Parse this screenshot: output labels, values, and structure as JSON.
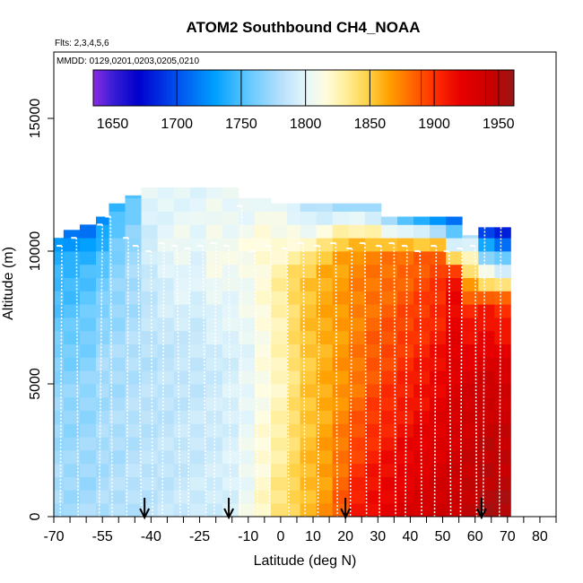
{
  "chart_data": {
    "type": "heatmap",
    "title": "ATOM2 Southbound CH4_NOAA",
    "flights_note": "Flts: 2,3,4,5,6",
    "dates_note": "MMDD: 0129,0201,0203,0205,0210",
    "xlabel": "Latitude (deg N)",
    "ylabel": "Altitude (m)",
    "xlim": [
      -70,
      85
    ],
    "ylim": [
      0,
      17500
    ],
    "x_ticks": [
      -70,
      -55,
      -40,
      -25,
      -10,
      0,
      10,
      20,
      30,
      40,
      50,
      60,
      70,
      80
    ],
    "x_minor_ticks": [
      -65,
      -60,
      -50,
      -45,
      -35,
      -30,
      -20,
      -15,
      -5,
      5,
      15,
      25,
      35,
      45,
      55,
      65,
      75,
      85
    ],
    "y_ticks": [
      0,
      5000,
      10000,
      15000
    ],
    "colorbar": {
      "min": 1635,
      "max": 1962,
      "tick_values": [
        1650,
        1700,
        1750,
        1800,
        1850,
        1900,
        1950
      ],
      "tick_labels": [
        "1650",
        "1700",
        "1750",
        "1800",
        "1850",
        "1900",
        "1950"
      ],
      "major_lines": [
        1700,
        1750,
        1800,
        1850,
        1900,
        1950
      ],
      "minor_lines": [
        1890,
        1940
      ]
    },
    "arrows_latitude": [
      -42,
      -16,
      20,
      62
    ],
    "color_stops": [
      {
        "v": 1635,
        "c": "#8a2be2"
      },
      {
        "v": 1650,
        "c": "#3a1fd6"
      },
      {
        "v": 1670,
        "c": "#0000cd"
      },
      {
        "v": 1700,
        "c": "#0050ee"
      },
      {
        "v": 1730,
        "c": "#00a0ff"
      },
      {
        "v": 1755,
        "c": "#60c8ff"
      },
      {
        "v": 1780,
        "c": "#b4e0fb"
      },
      {
        "v": 1800,
        "c": "#e4f6fb"
      },
      {
        "v": 1815,
        "c": "#fffce0"
      },
      {
        "v": 1830,
        "c": "#fff0a0"
      },
      {
        "v": 1850,
        "c": "#ffcf40"
      },
      {
        "v": 1865,
        "c": "#ffa000"
      },
      {
        "v": 1880,
        "c": "#ff7000"
      },
      {
        "v": 1900,
        "c": "#ff3000"
      },
      {
        "v": 1920,
        "c": "#e80000"
      },
      {
        "v": 1945,
        "c": "#c80000"
      },
      {
        "v": 1962,
        "c": "#9a1515"
      }
    ],
    "regions": [
      {
        "lat": [
          -70,
          -67
        ],
        "alt": [
          0,
          10500
        ],
        "profile": [
          [
            0,
            1778
          ],
          [
            5000,
            1770
          ],
          [
            9000,
            1745
          ],
          [
            10500,
            1730
          ]
        ]
      },
      {
        "lat": [
          -67,
          -62
        ],
        "alt": [
          0,
          10800
        ],
        "profile": [
          [
            0,
            1776
          ],
          [
            5000,
            1768
          ],
          [
            9500,
            1742
          ],
          [
            10800,
            1715
          ]
        ]
      },
      {
        "lat": [
          -62,
          -57
        ],
        "alt": [
          0,
          11000
        ],
        "profile": [
          [
            0,
            1776
          ],
          [
            5000,
            1770
          ],
          [
            9500,
            1748
          ],
          [
            11000,
            1705
          ]
        ]
      },
      {
        "lat": [
          -57,
          -53
        ],
        "alt": [
          0,
          11300
        ],
        "profile": [
          [
            0,
            1778
          ],
          [
            6000,
            1775
          ],
          [
            9500,
            1755
          ],
          [
            11300,
            1720
          ]
        ]
      },
      {
        "lat": [
          -53,
          -48
        ],
        "alt": [
          0,
          11800
        ],
        "profile": [
          [
            0,
            1780
          ],
          [
            6000,
            1776
          ],
          [
            10000,
            1765
          ],
          [
            11800,
            1740
          ]
        ]
      },
      {
        "lat": [
          -48,
          -43
        ],
        "alt": [
          0,
          12100
        ],
        "profile": [
          [
            0,
            1782
          ],
          [
            6000,
            1780
          ],
          [
            10500,
            1772
          ],
          [
            12100,
            1750
          ]
        ]
      },
      {
        "lat": [
          -43,
          -38
        ],
        "alt": [
          0,
          12400
        ],
        "profile": [
          [
            0,
            1784
          ],
          [
            6000,
            1782
          ],
          [
            10000,
            1790
          ],
          [
            12400,
            1800
          ]
        ]
      },
      {
        "lat": [
          -38,
          -33
        ],
        "alt": [
          0,
          12400
        ],
        "profile": [
          [
            0,
            1786
          ],
          [
            6000,
            1784
          ],
          [
            10000,
            1800
          ],
          [
            12400,
            1800
          ]
        ]
      },
      {
        "lat": [
          -33,
          -28
        ],
        "alt": [
          0,
          12400
        ],
        "profile": [
          [
            0,
            1788
          ],
          [
            6000,
            1785
          ],
          [
            10000,
            1806
          ],
          [
            12400,
            1800
          ]
        ]
      },
      {
        "lat": [
          -28,
          -23
        ],
        "alt": [
          0,
          12400
        ],
        "profile": [
          [
            0,
            1790
          ],
          [
            6000,
            1786
          ],
          [
            10000,
            1800
          ],
          [
            12400,
            1800
          ]
        ]
      },
      {
        "lat": [
          -23,
          -18
        ],
        "alt": [
          0,
          12400
        ],
        "profile": [
          [
            0,
            1792
          ],
          [
            6000,
            1790
          ],
          [
            10000,
            1812
          ],
          [
            12400,
            1800
          ]
        ]
      },
      {
        "lat": [
          -18,
          -13
        ],
        "alt": [
          0,
          12400
        ],
        "profile": [
          [
            0,
            1796
          ],
          [
            6000,
            1794
          ],
          [
            10000,
            1808
          ],
          [
            12400,
            1800
          ]
        ]
      },
      {
        "lat": [
          -13,
          -8
        ],
        "alt": [
          0,
          12000
        ],
        "profile": [
          [
            0,
            1806
          ],
          [
            6000,
            1800
          ],
          [
            10000,
            1812
          ],
          [
            12000,
            1800
          ]
        ]
      },
      {
        "lat": [
          -8,
          -3
        ],
        "alt": [
          0,
          12000
        ],
        "profile": [
          [
            0,
            1822
          ],
          [
            5000,
            1812
          ],
          [
            10000,
            1818
          ],
          [
            12000,
            1805
          ]
        ]
      },
      {
        "lat": [
          -3,
          2
        ],
        "alt": [
          0,
          11800
        ],
        "profile": [
          [
            0,
            1838
          ],
          [
            5000,
            1822
          ],
          [
            9000,
            1830
          ],
          [
            11800,
            1800
          ]
        ]
      },
      {
        "lat": [
          2,
          6
        ],
        "alt": [
          0,
          11800
        ],
        "profile": [
          [
            0,
            1848
          ],
          [
            5000,
            1838
          ],
          [
            9000,
            1845
          ],
          [
            11800,
            1790
          ]
        ]
      },
      {
        "lat": [
          6,
          11
        ],
        "alt": [
          0,
          11800
        ],
        "profile": [
          [
            0,
            1858
          ],
          [
            5000,
            1852
          ],
          [
            9000,
            1855
          ],
          [
            11800,
            1780
          ]
        ]
      },
      {
        "lat": [
          11,
          16
        ],
        "alt": [
          0,
          11800
        ],
        "profile": [
          [
            0,
            1868
          ],
          [
            5000,
            1860
          ],
          [
            9500,
            1862
          ],
          [
            11800,
            1775
          ]
        ]
      },
      {
        "lat": [
          16,
          21
        ],
        "alt": [
          0,
          11800
        ],
        "profile": [
          [
            0,
            1888
          ],
          [
            5000,
            1868
          ],
          [
            10000,
            1865
          ],
          [
            11800,
            1770
          ]
        ]
      },
      {
        "lat": [
          21,
          26
        ],
        "alt": [
          0,
          11800
        ],
        "profile": [
          [
            0,
            1912
          ],
          [
            5000,
            1878
          ],
          [
            10000,
            1872
          ],
          [
            11800,
            1765
          ]
        ]
      },
      {
        "lat": [
          26,
          31
        ],
        "alt": [
          0,
          11800
        ],
        "profile": [
          [
            0,
            1920
          ],
          [
            5000,
            1890
          ],
          [
            10000,
            1874
          ],
          [
            11800,
            1760
          ]
        ]
      },
      {
        "lat": [
          31,
          36
        ],
        "alt": [
          0,
          11300
        ],
        "profile": [
          [
            0,
            1925
          ],
          [
            5000,
            1898
          ],
          [
            10000,
            1876
          ],
          [
            11300,
            1760
          ]
        ]
      },
      {
        "lat": [
          36,
          41
        ],
        "alt": [
          0,
          11300
        ],
        "profile": [
          [
            0,
            1930
          ],
          [
            5000,
            1905
          ],
          [
            10000,
            1880
          ],
          [
            11300,
            1740
          ]
        ]
      },
      {
        "lat": [
          41,
          46
        ],
        "alt": [
          0,
          11300
        ],
        "profile": [
          [
            0,
            1935
          ],
          [
            5000,
            1912
          ],
          [
            10000,
            1885
          ],
          [
            11300,
            1720
          ]
        ]
      },
      {
        "lat": [
          46,
          51
        ],
        "alt": [
          0,
          11300
        ],
        "profile": [
          [
            0,
            1940
          ],
          [
            5000,
            1920
          ],
          [
            10000,
            1890
          ],
          [
            11300,
            1700
          ]
        ]
      },
      {
        "lat": [
          51,
          56
        ],
        "alt": [
          0,
          11300
        ],
        "profile": [
          [
            0,
            1945
          ],
          [
            5000,
            1930
          ],
          [
            9000,
            1915
          ],
          [
            11300,
            1700
          ]
        ]
      },
      {
        "lat": [
          56,
          61
        ],
        "alt": [
          0,
          10600
        ],
        "profile": [
          [
            0,
            1950
          ],
          [
            5000,
            1935
          ],
          [
            8000,
            1900
          ],
          [
            10600,
            1780
          ]
        ]
      },
      {
        "lat": [
          61,
          66
        ],
        "alt": [
          0,
          10900
        ],
        "profile": [
          [
            0,
            1955
          ],
          [
            5000,
            1940
          ],
          [
            8000,
            1905
          ],
          [
            10900,
            1680
          ]
        ]
      },
      {
        "lat": [
          66,
          71
        ],
        "alt": [
          0,
          10900
        ],
        "profile": [
          [
            0,
            1955
          ],
          [
            5000,
            1938
          ],
          [
            8000,
            1900
          ],
          [
            10900,
            1660
          ]
        ]
      }
    ],
    "profiles": [
      {
        "lat_top": -67.5,
        "lat_bottom": -68,
        "alt_top": 10200
      },
      {
        "lat_top": -63,
        "lat_bottom": -62.5,
        "alt_top": 10500
      },
      {
        "lat_top": -55,
        "lat_bottom": -56,
        "alt_top": 11000
      },
      {
        "lat_top": -52.5,
        "lat_bottom": -52,
        "alt_top": 11300
      },
      {
        "lat_top": -47,
        "lat_bottom": -47.5,
        "alt_top": 10500
      },
      {
        "lat_top": -44,
        "lat_bottom": -43,
        "alt_top": 10200
      },
      {
        "lat_top": -40,
        "lat_bottom": -39.5,
        "alt_top": 10000
      },
      {
        "lat_top": -36,
        "lat_bottom": -36.5,
        "alt_top": 10300
      },
      {
        "lat_top": -32,
        "lat_bottom": -31,
        "alt_top": 10200
      },
      {
        "lat_top": -28,
        "lat_bottom": -28.5,
        "alt_top": 10100
      },
      {
        "lat_top": -24,
        "lat_bottom": -23,
        "alt_top": 10200
      },
      {
        "lat_top": -20,
        "lat_bottom": -20.5,
        "alt_top": 10300
      },
      {
        "lat_top": -16,
        "lat_bottom": -15.5,
        "alt_top": 10200
      },
      {
        "lat_top": -12,
        "lat_bottom": -12.5,
        "alt_top": 11700
      },
      {
        "lat_top": -8,
        "lat_bottom": -7,
        "alt_top": 10000
      },
      {
        "lat_top": -3,
        "lat_bottom": -3.5,
        "alt_top": 10200
      },
      {
        "lat_top": 2,
        "lat_bottom": 2.5,
        "alt_top": 10100
      },
      {
        "lat_top": 7,
        "lat_bottom": 7.5,
        "alt_top": 10300
      },
      {
        "lat_top": 12,
        "lat_bottom": 11.5,
        "alt_top": 10200
      },
      {
        "lat_top": 17,
        "lat_bottom": 17.5,
        "alt_top": 10300
      },
      {
        "lat_top": 22,
        "lat_bottom": 21.5,
        "alt_top": 10100
      },
      {
        "lat_top": 26,
        "lat_bottom": 26.5,
        "alt_top": 10300
      },
      {
        "lat_top": 31,
        "lat_bottom": 30.5,
        "alt_top": 10200
      },
      {
        "lat_top": 35,
        "lat_bottom": 35.5,
        "alt_top": 10300
      },
      {
        "lat_top": 39,
        "lat_bottom": 38.5,
        "alt_top": 10200
      },
      {
        "lat_top": 43,
        "lat_bottom": 43.5,
        "alt_top": 10000
      },
      {
        "lat_top": 48,
        "lat_bottom": 47.5,
        "alt_top": 10200
      },
      {
        "lat_top": 52,
        "lat_bottom": 52.5,
        "alt_top": 10000
      },
      {
        "lat_top": 56,
        "lat_bottom": 55.5,
        "alt_top": 10100
      },
      {
        "lat_top": 60,
        "lat_bottom": 60.5,
        "alt_top": 10200
      },
      {
        "lat_top": 63,
        "lat_bottom": 62.5,
        "alt_top": 11300
      },
      {
        "lat_top": 68,
        "lat_bottom": 67.5,
        "alt_top": 11300
      }
    ]
  }
}
